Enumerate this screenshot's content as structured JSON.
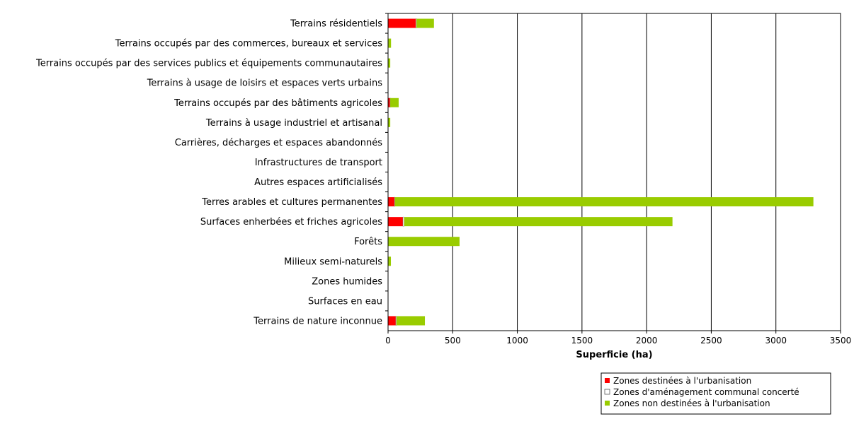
{
  "chart_data": {
    "type": "bar",
    "orientation": "horizontal",
    "stacked": true,
    "categories": [
      "Terrains résidentiels",
      "Terrains occupés par des commerces, bureaux et services",
      "Terrains occupés par des services publics et équipements communautaires",
      "Terrains à usage de loisirs et espaces verts urbains",
      "Terrains occupés par des bâtiments agricoles",
      "Terrains à usage industriel et artisanal",
      "Carrières, décharges et espaces abandonnés",
      "Infrastructures de transport",
      "Autres espaces artificialisés",
      "Terres arables et cultures permanentes",
      "Surfaces enherbées et friches agricoles",
      "Forêts",
      "Milieux semi-naturels",
      "Zones humides",
      "Surfaces en eau",
      "Terrains de nature inconnue"
    ],
    "series": [
      {
        "name": "Zones destinées à l'urbanisation",
        "color": "#ff0000",
        "values": [
          215,
          3,
          2,
          0,
          15,
          2,
          0,
          0,
          0,
          50,
          115,
          0,
          2,
          0,
          0,
          60
        ]
      },
      {
        "name": "Zones d'aménagement communal concerté",
        "color": "#ffffff",
        "values": [
          5,
          0,
          0,
          0,
          2,
          0,
          0,
          0,
          0,
          3,
          10,
          0,
          0,
          0,
          0,
          5
        ]
      },
      {
        "name": "Zones non destinées à l'urbanisation",
        "color": "#99cc00",
        "values": [
          135,
          20,
          15,
          0,
          65,
          15,
          0,
          0,
          0,
          3237,
          2075,
          553,
          20,
          0,
          0,
          220
        ]
      }
    ],
    "x_ticks": [
      "0",
      "500",
      "1000",
      "1500",
      "2000",
      "2500",
      "3000",
      "3500"
    ],
    "xlim": [
      0,
      3500
    ],
    "xlabel": "Superficie (ha)",
    "grid": "vertical",
    "legend_position": "bottom-right"
  }
}
